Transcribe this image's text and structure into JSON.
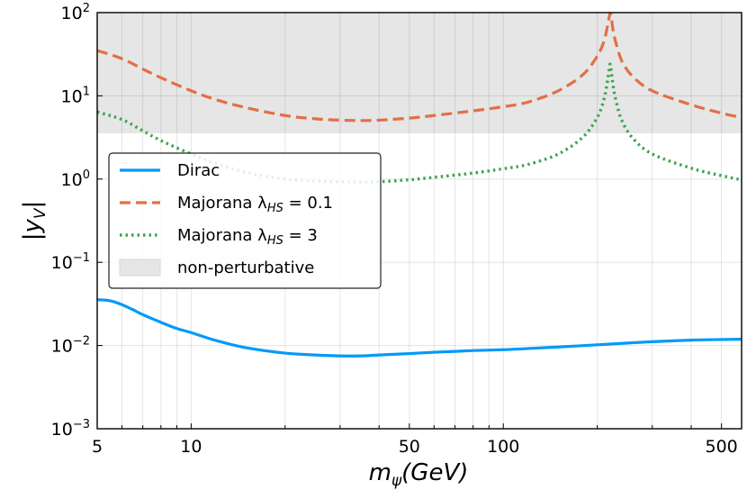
{
  "chart_data": {
    "type": "line",
    "xscale": "log",
    "yscale": "log",
    "xlim": [
      5,
      580
    ],
    "ylim": [
      0.001,
      100
    ],
    "xlabel_base": "m",
    "xlabel_sub": "ψ",
    "xlabel_unit": "(GeV)",
    "ylabel_inner": "y",
    "ylabel_sub": "V",
    "x_ticks": [
      {
        "value": 5,
        "label": "5"
      },
      {
        "value": 10,
        "label": "10"
      },
      {
        "value": 50,
        "label": "50"
      },
      {
        "value": 100,
        "label": "100"
      },
      {
        "value": 500,
        "label": "500"
      }
    ],
    "y_ticks": [
      {
        "value": 0.001,
        "base": "10",
        "exp": "−3"
      },
      {
        "value": 0.01,
        "base": "10",
        "exp": "−2"
      },
      {
        "value": 0.1,
        "base": "10",
        "exp": "−1"
      },
      {
        "value": 1,
        "base": "10",
        "exp": "0"
      },
      {
        "value": 10,
        "base": "10",
        "exp": "1"
      },
      {
        "value": 100,
        "base": "10",
        "exp": "2"
      }
    ],
    "grid": true,
    "shaded_region": {
      "name": "non-perturbative",
      "y_from": 3.545,
      "y_to": 100,
      "color": "#e6e6e6"
    },
    "series": [
      {
        "name": "Dirac",
        "legend_label": "Dirac",
        "color": "#009af9",
        "style": "solid",
        "x": [
          5,
          5.5,
          6,
          6.5,
          7,
          8,
          9,
          10,
          12,
          15,
          20,
          25,
          30,
          35,
          40,
          50,
          60,
          70,
          80,
          100,
          120,
          150,
          200,
          250,
          300,
          400,
          500,
          580
        ],
        "y": [
          0.0355,
          0.0345,
          0.031,
          0.027,
          0.0235,
          0.019,
          0.016,
          0.0143,
          0.0115,
          0.0094,
          0.0081,
          0.0077,
          0.0075,
          0.0075,
          0.0077,
          0.008,
          0.0083,
          0.0085,
          0.0087,
          0.0089,
          0.0092,
          0.0096,
          0.0102,
          0.0107,
          0.0111,
          0.0116,
          0.0118,
          0.0119
        ]
      },
      {
        "name": "Majorana_lambda_0.1",
        "legend_label": "Majorana λ",
        "legend_sub": "HS",
        "legend_tail": " = 0.1",
        "color": "#e26f46",
        "style": "dashed",
        "x": [
          5,
          6,
          7,
          8,
          10,
          12,
          15,
          20,
          25,
          30,
          35,
          40,
          50,
          60,
          80,
          100,
          120,
          150,
          180,
          200,
          210,
          215,
          218,
          220,
          222,
          225,
          230,
          240,
          260,
          300,
          400,
          500,
          580
        ],
        "y": [
          35,
          28,
          21,
          16.5,
          11.5,
          9.0,
          7.2,
          5.8,
          5.3,
          5.1,
          5.05,
          5.1,
          5.4,
          5.8,
          6.6,
          7.4,
          8.4,
          11.5,
          18,
          30,
          45,
          65,
          85,
          100,
          85,
          60,
          42,
          26,
          17,
          11.5,
          7.8,
          6.2,
          5.5
        ]
      },
      {
        "name": "Majorana_lambda_3",
        "legend_label": "Majorana λ",
        "legend_sub": "HS",
        "legend_tail": " = 3",
        "color": "#3da44d",
        "style": "dotted",
        "x": [
          5,
          6,
          7,
          8,
          10,
          12,
          15,
          20,
          25,
          30,
          35,
          40,
          50,
          60,
          80,
          100,
          120,
          150,
          180,
          200,
          210,
          215,
          218,
          220,
          222,
          225,
          230,
          240,
          260,
          300,
          400,
          500,
          580
        ],
        "y": [
          6.4,
          5.2,
          3.8,
          2.9,
          2.0,
          1.55,
          1.2,
          1.0,
          0.95,
          0.93,
          0.92,
          0.93,
          0.98,
          1.05,
          1.18,
          1.33,
          1.5,
          2.0,
          3.2,
          5.5,
          9,
          14,
          20,
          24,
          19,
          13,
          8.5,
          5.0,
          3.1,
          2.0,
          1.35,
          1.1,
          0.98
        ]
      }
    ],
    "legend": {
      "position": "middle-left",
      "entries": [
        {
          "series": "Dirac",
          "text": "Dirac"
        },
        {
          "series": "Majorana_lambda_0.1",
          "text": "Majorana λ",
          "sub": "HS",
          "tail": " = 0.1"
        },
        {
          "series": "Majorana_lambda_3",
          "text": "Majorana λ",
          "sub": "HS",
          "tail": " = 3"
        },
        {
          "series": "non-perturbative",
          "text": "non-perturbative"
        }
      ]
    }
  }
}
